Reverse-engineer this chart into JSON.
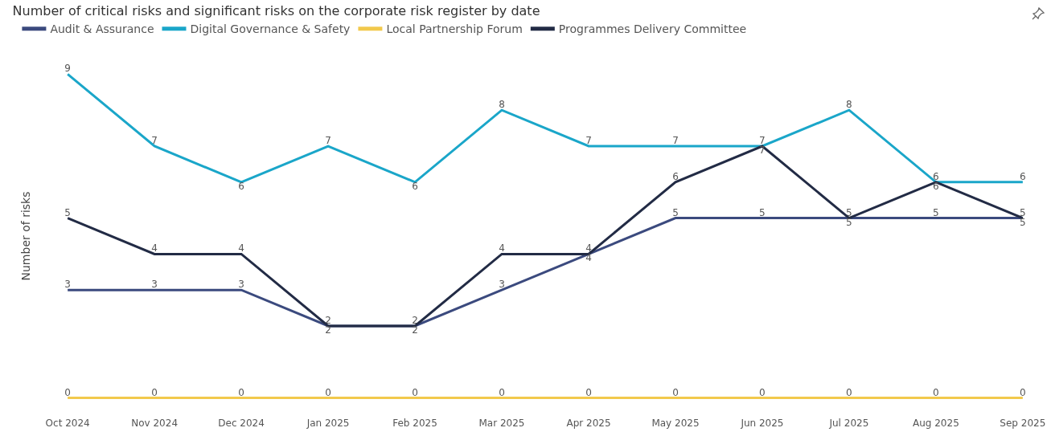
{
  "chart_data": {
    "type": "line",
    "title": "Number of critical risks and significant risks on the corporate risk register by date",
    "ylabel": "Number of risks",
    "categories": [
      "Oct 2024",
      "Nov 2024",
      "Dec 2024",
      "Jan 2025",
      "Feb 2025",
      "Mar 2025",
      "Apr 2025",
      "May 2025",
      "Jun 2025",
      "Jul 2025",
      "Aug 2025",
      "Sep 2025"
    ],
    "series": [
      {
        "name": "Audit & Assurance",
        "color": "#3b4a7e",
        "values": [
          3,
          3,
          3,
          2,
          2,
          3,
          4,
          5,
          5,
          5,
          5,
          5
        ]
      },
      {
        "name": "Digital Governance & Safety",
        "color": "#1aa6c9",
        "values": [
          9,
          7,
          6,
          7,
          6,
          8,
          7,
          7,
          7,
          8,
          6,
          6
        ]
      },
      {
        "name": "Local Partnership Forum",
        "color": "#f2c94c",
        "values": [
          0,
          0,
          0,
          0,
          0,
          0,
          0,
          0,
          0,
          0,
          0,
          0
        ]
      },
      {
        "name": "Programmes Delivery Committee",
        "color": "#222b45",
        "values": [
          5,
          4,
          4,
          2,
          2,
          4,
          4,
          6,
          7,
          5,
          6,
          5
        ]
      }
    ],
    "tick_labels": "x",
    "data_labels": true,
    "grid": false,
    "legend": "top left",
    "marker": "none",
    "line_style": "solid"
  }
}
